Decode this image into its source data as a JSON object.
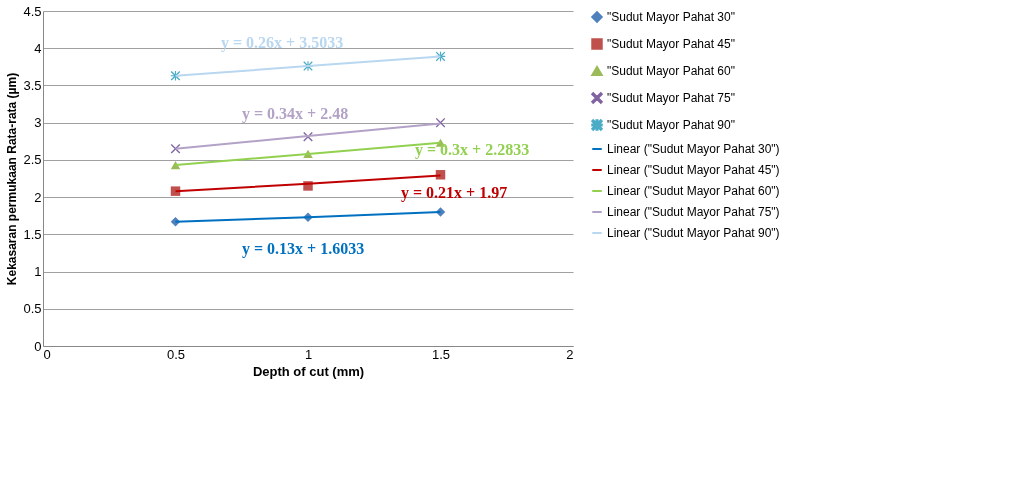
{
  "chart_data": {
    "type": "scatter",
    "xlabel": "Depth of cut (mm)",
    "ylabel": "Kekasaran permukaan Rata-rata  (µm)",
    "x": [
      0.5,
      1,
      1.5
    ],
    "series": [
      {
        "name": "\"Sudut Mayor Pahat 30\"",
        "color": "#4f81bd",
        "marker": "diamond",
        "values": [
          1.67,
          1.73,
          1.8
        ]
      },
      {
        "name": "\"Sudut Mayor Pahat 45\"",
        "color": "#c0504d",
        "marker": "square",
        "values": [
          2.08,
          2.15,
          2.3
        ]
      },
      {
        "name": "\"Sudut Mayor Pahat 60\"",
        "color": "#9bbb59",
        "marker": "triangle",
        "values": [
          2.43,
          2.58,
          2.73
        ]
      },
      {
        "name": "\"Sudut Mayor Pahat 75\"",
        "color": "#8064a2",
        "marker": "cross",
        "values": [
          2.65,
          2.81,
          3.0
        ]
      },
      {
        "name": "\"Sudut Mayor Pahat 90\"",
        "color": "#4bacc6",
        "marker": "star",
        "values": [
          3.63,
          3.76,
          3.89
        ]
      },
      {
        "name": "Linear (\"Sudut Mayor Pahat 30\")",
        "type": "line",
        "color": "#0070c0",
        "line_style": "solid",
        "values": [
          1.67,
          1.73,
          1.8
        ]
      },
      {
        "name": "Linear (\"Sudut Mayor Pahat 45\")",
        "type": "line",
        "color": "#c00000",
        "line_style": "solid",
        "values": [
          2.08,
          2.18,
          2.29
        ]
      },
      {
        "name": "Linear (\"Sudut Mayor Pahat 60\")",
        "type": "line",
        "color": "#92d050",
        "line_style": "solid",
        "values": [
          2.43,
          2.58,
          2.73
        ]
      },
      {
        "name": "Linear (\"Sudut Mayor Pahat 75\")",
        "type": "line",
        "color": "#b3a2c7",
        "line_style": "solid",
        "values": [
          2.65,
          2.82,
          2.99
        ]
      },
      {
        "name": "Linear (\"Sudut Mayor Pahat 90\")",
        "type": "line",
        "color": "#b9d7f0",
        "line_style": "solid",
        "values": [
          3.63,
          3.76,
          3.89
        ]
      }
    ],
    "annotations": [
      "y = 0.13x + 1.6033",
      "y = 0.21x + 1.97",
      "y = 0.3x + 2.2833",
      "y = 0.34x + 2.48",
      "y = 0.26x + 3.5033"
    ],
    "xlim": [
      0,
      2
    ],
    "xticks": [
      0,
      0.5,
      1,
      1.5,
      2
    ],
    "ylim": [
      0,
      4.5
    ],
    "yticks": [
      0,
      0.5,
      1,
      1.5,
      2,
      2.5,
      3,
      3.5,
      4,
      4.5
    ],
    "grid": "y",
    "legend": "right"
  }
}
